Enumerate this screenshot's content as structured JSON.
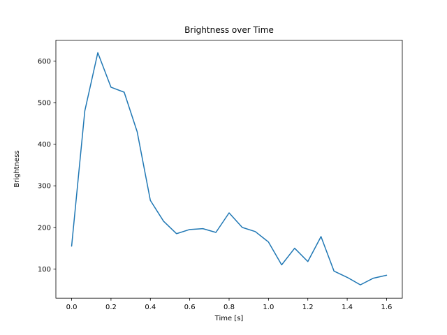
{
  "chart_data": {
    "type": "line",
    "title": "Brightness over Time",
    "xlabel": "Time [s]",
    "ylabel": "Brightness",
    "xlim": [
      -0.08,
      1.68
    ],
    "ylim": [
      30,
      650
    ],
    "xticks": [
      0.0,
      0.2,
      0.4,
      0.6,
      0.8,
      1.0,
      1.2,
      1.4,
      1.6
    ],
    "xtick_labels": [
      "0.0",
      "0.2",
      "0.4",
      "0.6",
      "0.8",
      "1.0",
      "1.2",
      "1.4",
      "1.6"
    ],
    "yticks": [
      100,
      200,
      300,
      400,
      500,
      600
    ],
    "ytick_labels": [
      "100",
      "200",
      "300",
      "400",
      "500",
      "600"
    ],
    "line_color": "#1f77b4",
    "grid": false,
    "legend": "none",
    "x": [
      0.0,
      0.067,
      0.133,
      0.2,
      0.267,
      0.333,
      0.4,
      0.467,
      0.533,
      0.6,
      0.667,
      0.733,
      0.8,
      0.867,
      0.933,
      1.0,
      1.067,
      1.133,
      1.2,
      1.267,
      1.333,
      1.4,
      1.467,
      1.533,
      1.6
    ],
    "y": [
      155,
      480,
      620,
      537,
      525,
      430,
      265,
      215,
      185,
      195,
      197,
      188,
      235,
      200,
      190,
      165,
      110,
      150,
      118,
      178,
      95,
      80,
      62,
      78,
      85
    ]
  }
}
